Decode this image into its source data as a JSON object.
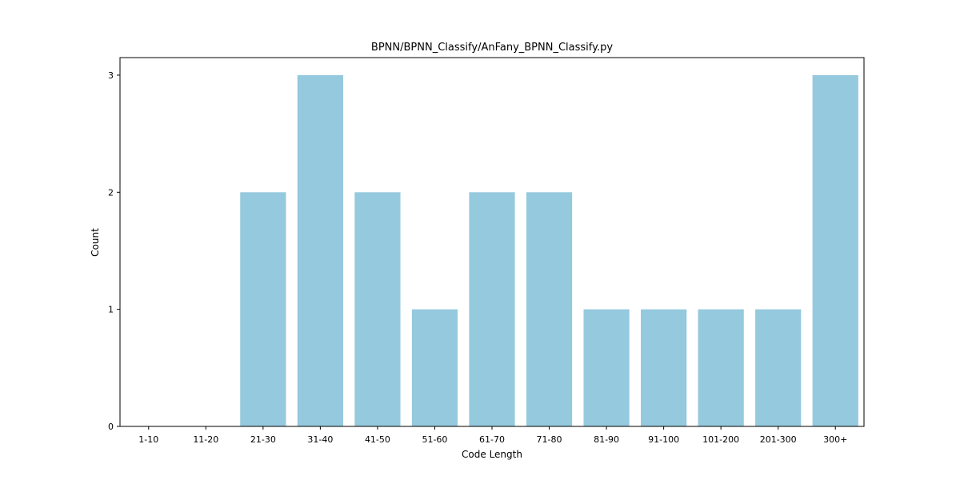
{
  "chart_data": {
    "type": "bar",
    "title": "BPNN/BPNN_Classify/AnFany_BPNN_Classify.py",
    "xlabel": "Code Length",
    "ylabel": "Count",
    "categories": [
      "1-10",
      "11-20",
      "21-30",
      "31-40",
      "41-50",
      "51-60",
      "61-70",
      "71-80",
      "81-90",
      "91-100",
      "101-200",
      "201-300",
      "300+"
    ],
    "values": [
      0,
      0,
      2,
      3,
      2,
      1,
      2,
      2,
      1,
      1,
      1,
      1,
      3
    ],
    "yticks": [
      0,
      1,
      2,
      3
    ],
    "ylim": [
      0,
      3.15
    ],
    "bar_color": "#95c9de",
    "grid": false,
    "legend": "none"
  }
}
